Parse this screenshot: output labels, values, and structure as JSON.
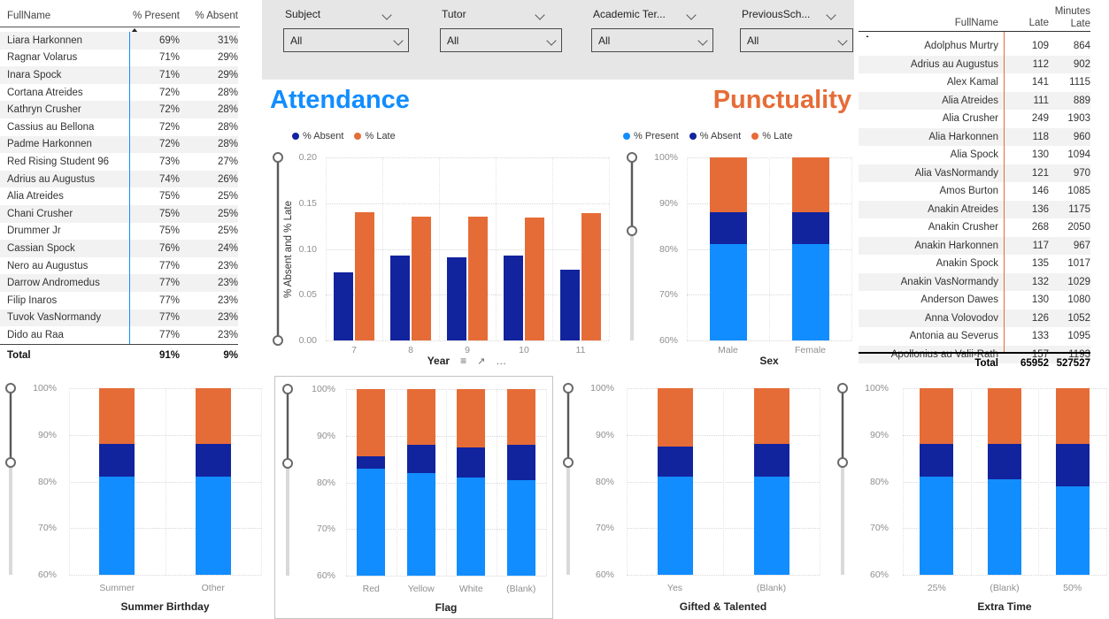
{
  "colors": {
    "present": "#118DFF",
    "absent": "#12239E",
    "late": "#E66C37",
    "attendance_title": "#118DFF",
    "punctuality_title": "#E66C37",
    "table_accent_left": "#118DFF",
    "table_accent_right": "#E66C37",
    "filter_bar_bg": "#e6e6e6"
  },
  "titles": {
    "attendance": "Attendance",
    "punctuality": "Punctuality"
  },
  "filter_bar": {
    "slicers": [
      {
        "label": "Subject",
        "value": "All"
      },
      {
        "label": "Tutor",
        "value": "All"
      },
      {
        "label": "Academic Ter...",
        "value": "All"
      },
      {
        "label": "PreviousSch...",
        "value": "All"
      }
    ]
  },
  "attendance_table": {
    "columns": [
      "FullName",
      "% Present",
      "% Absent"
    ],
    "sort": {
      "column": "% Present",
      "direction": "ascending"
    },
    "rows": [
      [
        "Liara Harkonnen",
        "69%",
        "31%"
      ],
      [
        "Ragnar Volarus",
        "71%",
        "29%"
      ],
      [
        "Inara Spock",
        "71%",
        "29%"
      ],
      [
        "Cortana Atreides",
        "72%",
        "28%"
      ],
      [
        "Kathryn Crusher",
        "72%",
        "28%"
      ],
      [
        "Cassius au Bellona",
        "72%",
        "28%"
      ],
      [
        "Padme Harkonnen",
        "72%",
        "28%"
      ],
      [
        "Red Rising Student 96",
        "73%",
        "27%"
      ],
      [
        "Adrius au Augustus",
        "74%",
        "26%"
      ],
      [
        "Alia Atreides",
        "75%",
        "25%"
      ],
      [
        "Chani Crusher",
        "75%",
        "25%"
      ],
      [
        "Drummer Jr",
        "75%",
        "25%"
      ],
      [
        "Cassian Spock",
        "76%",
        "24%"
      ],
      [
        "Nero au Augustus",
        "77%",
        "23%"
      ],
      [
        "Darrow Andromedus",
        "77%",
        "23%"
      ],
      [
        "Filip Inaros",
        "77%",
        "23%"
      ],
      [
        "Tuvok VasNormandy",
        "77%",
        "23%"
      ],
      [
        "Dido au Raa",
        "77%",
        "23%"
      ]
    ],
    "total": [
      "Total",
      "91%",
      "9%"
    ]
  },
  "punctuality_table": {
    "columns": [
      "FullName",
      "Late",
      "Minutes Late"
    ],
    "sort": {
      "column": "FullName",
      "direction": "ascending"
    },
    "rows": [
      [
        "Adolphus Murtry",
        "109",
        "864"
      ],
      [
        "Adrius au Augustus",
        "112",
        "902"
      ],
      [
        "Alex Kamal",
        "141",
        "1115"
      ],
      [
        "Alia Atreides",
        "111",
        "889"
      ],
      [
        "Alia Crusher",
        "249",
        "1903"
      ],
      [
        "Alia Harkonnen",
        "118",
        "960"
      ],
      [
        "Alia Spock",
        "130",
        "1094"
      ],
      [
        "Alia VasNormandy",
        "121",
        "970"
      ],
      [
        "Amos Burton",
        "146",
        "1085"
      ],
      [
        "Anakin Atreides",
        "136",
        "1175"
      ],
      [
        "Anakin Crusher",
        "268",
        "2050"
      ],
      [
        "Anakin Harkonnen",
        "117",
        "967"
      ],
      [
        "Anakin Spock",
        "135",
        "1017"
      ],
      [
        "Anakin VasNormandy",
        "132",
        "1029"
      ],
      [
        "Anderson Dawes",
        "130",
        "1080"
      ],
      [
        "Anna Volovodov",
        "126",
        "1052"
      ],
      [
        "Antonia au Severus",
        "133",
        "1095"
      ]
    ],
    "partial_row": [
      "Apollonius au Valii-Rath",
      "157",
      "1193"
    ],
    "total": [
      "Total",
      "65952",
      "527527"
    ]
  },
  "chart_data": [
    {
      "id": "absent_late_by_year",
      "type": "bar",
      "title": "Attendance",
      "categories": [
        "7",
        "8",
        "9",
        "10",
        "11"
      ],
      "series": [
        {
          "name": "% Absent",
          "color": "#12239E",
          "values": [
            0.074,
            0.093,
            0.091,
            0.093,
            0.077
          ]
        },
        {
          "name": "% Late",
          "color": "#E66C37",
          "values": [
            0.14,
            0.135,
            0.135,
            0.134,
            0.139
          ]
        }
      ],
      "xlabel": "Year",
      "ylabel": "% Absent and % Late",
      "ylim": [
        0,
        0.2
      ],
      "yticks": [
        "0.20",
        "0.15",
        "0.10",
        "0.05",
        "0.00"
      ],
      "grid": true,
      "legend_position": "top"
    },
    {
      "id": "attendance_by_sex",
      "type": "bar",
      "stacked": true,
      "percent": true,
      "categories": [
        "Male",
        "Female"
      ],
      "series": [
        {
          "name": "% Present",
          "color": "#118DFF",
          "values": [
            81,
            81
          ]
        },
        {
          "name": "% Absent",
          "color": "#12239E",
          "values": [
            7,
            7
          ]
        },
        {
          "name": "% Late",
          "color": "#E66C37",
          "values": [
            12,
            12
          ]
        }
      ],
      "xlabel": "Sex",
      "ylim": [
        60,
        100
      ],
      "yticks": [
        "100%",
        "90%",
        "80%",
        "70%",
        "60%"
      ],
      "grid": true,
      "legend_position": "top"
    },
    {
      "id": "attendance_by_summer_birthday",
      "type": "bar",
      "stacked": true,
      "percent": true,
      "categories": [
        "Summer",
        "Other"
      ],
      "series": [
        {
          "name": "% Present",
          "color": "#118DFF",
          "values": [
            81,
            81
          ]
        },
        {
          "name": "% Absent",
          "color": "#12239E",
          "values": [
            7,
            7
          ]
        },
        {
          "name": "% Late",
          "color": "#E66C37",
          "values": [
            12,
            12
          ]
        }
      ],
      "xlabel": "Summer Birthday",
      "ylim": [
        60,
        100
      ],
      "yticks": [
        "100%",
        "90%",
        "80%",
        "70%",
        "60%"
      ],
      "grid": true,
      "legend_position": "none"
    },
    {
      "id": "attendance_by_flag",
      "type": "bar",
      "stacked": true,
      "percent": true,
      "categories": [
        "Red",
        "Yellow",
        "White",
        "(Blank)"
      ],
      "series": [
        {
          "name": "% Present",
          "color": "#118DFF",
          "values": [
            83,
            82,
            81,
            80.5
          ]
        },
        {
          "name": "% Absent",
          "color": "#12239E",
          "values": [
            2.5,
            6,
            6.5,
            7.5
          ]
        },
        {
          "name": "% Late",
          "color": "#E66C37",
          "values": [
            14.5,
            12,
            12.5,
            12
          ]
        }
      ],
      "xlabel": "Flag",
      "ylim": [
        60,
        100
      ],
      "yticks": [
        "100%",
        "90%",
        "80%",
        "70%",
        "60%"
      ],
      "grid": true,
      "legend_position": "none"
    },
    {
      "id": "attendance_by_gifted_talented",
      "type": "bar",
      "stacked": true,
      "percent": true,
      "categories": [
        "Yes",
        "(Blank)"
      ],
      "series": [
        {
          "name": "% Present",
          "color": "#118DFF",
          "values": [
            81,
            81
          ]
        },
        {
          "name": "% Absent",
          "color": "#12239E",
          "values": [
            6.5,
            7
          ]
        },
        {
          "name": "% Late",
          "color": "#E66C37",
          "values": [
            12.5,
            12
          ]
        }
      ],
      "xlabel": "Gifted & Talented",
      "ylim": [
        60,
        100
      ],
      "yticks": [
        "100%",
        "90%",
        "80%",
        "70%",
        "60%"
      ],
      "grid": true,
      "legend_position": "none"
    },
    {
      "id": "attendance_by_extra_time",
      "type": "bar",
      "stacked": true,
      "percent": true,
      "categories": [
        "25%",
        "(Blank)",
        "50%"
      ],
      "series": [
        {
          "name": "% Present",
          "color": "#118DFF",
          "values": [
            81,
            80.5,
            79
          ]
        },
        {
          "name": "% Absent",
          "color": "#12239E",
          "values": [
            7,
            7.5,
            9
          ]
        },
        {
          "name": "% Late",
          "color": "#E66C37",
          "values": [
            12,
            12,
            12
          ]
        }
      ],
      "xlabel": "Extra Time",
      "ylim": [
        60,
        100
      ],
      "yticks": [
        "100%",
        "90%",
        "80%",
        "70%",
        "60%"
      ],
      "grid": true,
      "legend_position": "none"
    }
  ]
}
